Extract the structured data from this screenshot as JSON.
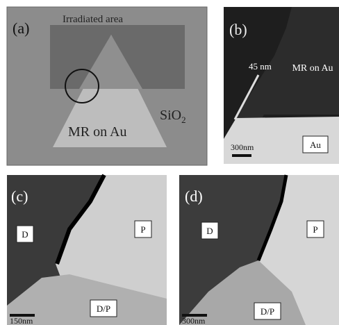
{
  "panels": [
    {
      "label": "(a)",
      "irradiated": "Irradiated area",
      "region": "MR on Au",
      "substrate": {
        "base": "SiO",
        "sub": "2"
      }
    },
    {
      "label": "(b)",
      "width": "45 nm",
      "region": "MR on Au",
      "scale": "300nm",
      "metal": "Au"
    },
    {
      "label": "(c)",
      "left": "D",
      "right": "P",
      "bottom": "D/P",
      "scale": "150nm"
    },
    {
      "label": "(d)",
      "left": "D",
      "right": "P",
      "bottom": "D/P",
      "scale": "300nm"
    }
  ]
}
